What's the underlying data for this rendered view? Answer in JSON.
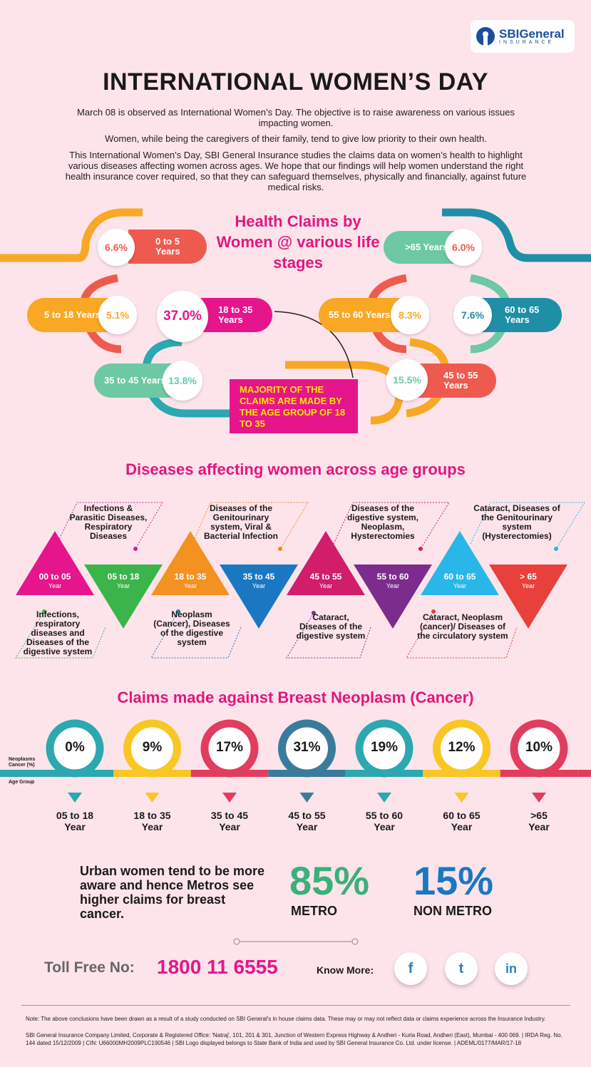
{
  "brand": {
    "name": "SBIGeneral",
    "sub": "INSURANCE"
  },
  "title": "INTERNATIONAL WOMEN’S DAY",
  "intro": [
    "March 08 is observed as International Women’s Day. The objective is to raise awareness on various issues impacting women.",
    "Women, while being the caregivers of their family, tend to give low priority to their own health.",
    "This International Women’s Day, SBI General Insurance studies the claims data on women’s health to highlight various diseases affecting women across ages. We hope that our findings will help women understand the right health insurance cover required, so that they can safeguard themselves, physically and financially, against future medical risks."
  ],
  "colors": {
    "pink": "#e6158c",
    "coral": "#ee5b4e",
    "orange": "#f9a825",
    "teal": "#2ba8b0",
    "mint": "#6cc9a3",
    "darkteal": "#1f8fa8",
    "green": "#3ab54a",
    "blue": "#1a78c2",
    "purple": "#7b2c8c",
    "red": "#e8413c",
    "magenta": "#d11d6a",
    "sky": "#29b6e8"
  },
  "claims_title": "Health Claims by Women @ various life stages",
  "claims_stages": [
    {
      "age": "0 to 5 Years",
      "pct": "6.6%"
    },
    {
      "age": "5 to 18 Years",
      "pct": "5.1%"
    },
    {
      "age": "18 to 35 Years",
      "pct": "37.0%"
    },
    {
      "age": "35 to 45 Years",
      "pct": "13.8%"
    },
    {
      "age": "45 to 55 Years",
      "pct": "15.5%"
    },
    {
      "age": "55 to 60 Years",
      "pct": "8.3%"
    },
    {
      "age": "60 to 65 Years",
      "pct": "7.6%"
    },
    {
      "age": ">65 Years",
      "pct": "6.0%"
    }
  ],
  "callout": "MAJORITY OF THE CLAIMS ARE MADE BY THE AGE GROUP OF 18 TO 35",
  "diseases_title": "Diseases affecting women across age groups",
  "disease_groups": [
    {
      "age": "00 to 05",
      "unit": "Year",
      "note": "Infections & Parasitic Diseases, Respiratory Diseases"
    },
    {
      "age": "05 to 18",
      "unit": "Year",
      "note": "Infections, respiratory diseases and Diseases of the digestive system"
    },
    {
      "age": "18 to 35",
      "unit": "Year",
      "note": "Diseases of the Genitourinary system, Viral & Bacterial Infection"
    },
    {
      "age": "35 to 45",
      "unit": "Year",
      "note": "Neoplasm (Cancer), Diseases of the digestive system"
    },
    {
      "age": "45 to 55",
      "unit": "Year",
      "note": "Diseases of the digestive system, Neoplasm, Hysterectomies"
    },
    {
      "age": "55 to 60",
      "unit": "Year",
      "note": "Cataract, Diseases of the digestive system"
    },
    {
      "age": "60 to 65",
      "unit": "Year",
      "note": "Cataract, Diseases of the Genitourinary system (Hysterectomies)"
    },
    {
      "age": "> 65",
      "unit": "Year",
      "note": "Cataract, Neoplasm (cancer)/ Diseases of the circulatory system"
    }
  ],
  "breast_title": "Claims made against Breast Neoplasm (Cancer)",
  "breast_axis": {
    "y": "Neoplasms Cancer (%)",
    "x": "Age Group"
  },
  "chart_data": {
    "type": "bar",
    "title": "Health Claims by Women @ various life stages",
    "categories": [
      "0 to 5 Years",
      "5 to 18 Years",
      "18 to 35 Years",
      "35 to 45 Years",
      "45 to 55 Years",
      "55 to 60 Years",
      "60 to 65 Years",
      ">65 Years"
    ],
    "values": [
      6.6,
      5.1,
      37.0,
      13.8,
      15.5,
      8.3,
      7.6,
      6.0
    ],
    "breast_neoplasm": {
      "categories": [
        "05 to 18 Year",
        "18 to 35 Year",
        "35 to 45 Year",
        "45 to 55 Year",
        "55 to 60 Year",
        "60 to 65 Year",
        ">65 Year"
      ],
      "values": [
        0,
        9,
        17,
        31,
        19,
        12,
        10
      ],
      "labels": [
        "0%",
        "9%",
        "17%",
        "31%",
        "19%",
        "12%",
        "10%"
      ]
    },
    "metro_split": {
      "categories": [
        "METRO",
        "NON METRO"
      ],
      "values": [
        85,
        15
      ]
    }
  },
  "breast_ages": [
    [
      "05 to 18",
      "Year"
    ],
    [
      "18 to 35",
      "Year"
    ],
    [
      "35 to 45",
      "Year"
    ],
    [
      "45 to 55",
      "Year"
    ],
    [
      "55 to 60",
      "Year"
    ],
    [
      "60 to 65",
      "Year"
    ],
    [
      ">65",
      "Year"
    ]
  ],
  "urban_text": "Urban women tend to be more aware and hence Metros see higher claims for breast cancer.",
  "metro": {
    "pct": "85%",
    "label": "METRO"
  },
  "nonmetro": {
    "pct": "15%",
    "label": "NON METRO"
  },
  "toll": {
    "label": "Toll Free No:",
    "number": "1800 11 6555"
  },
  "know_more": "Know More:",
  "social": [
    "f",
    "t",
    "in"
  ],
  "footer": [
    "Note: The above conclusions have been drawn as a result of a study conducted on SBI General's in house claims data. These may or may not reflect data or claims experience across the Insurance Industry.",
    "SBI General Insurance Company Limited, Corporate & Registered Office: 'Natraj', 101, 201 & 301, Junction of Western Express Highway & Andheri - Kurla Road, Andheri (East), Mumbai - 400 069. | IRDA Reg. No. 144 dated 15/12/2009 | CIN: U66000MH2009PLC190546 | SBI Logo displayed belongs to State Bank of India and used by SBI General Insurance Co. Ltd. under license. | ADEML/0177/MAR/17-18"
  ]
}
